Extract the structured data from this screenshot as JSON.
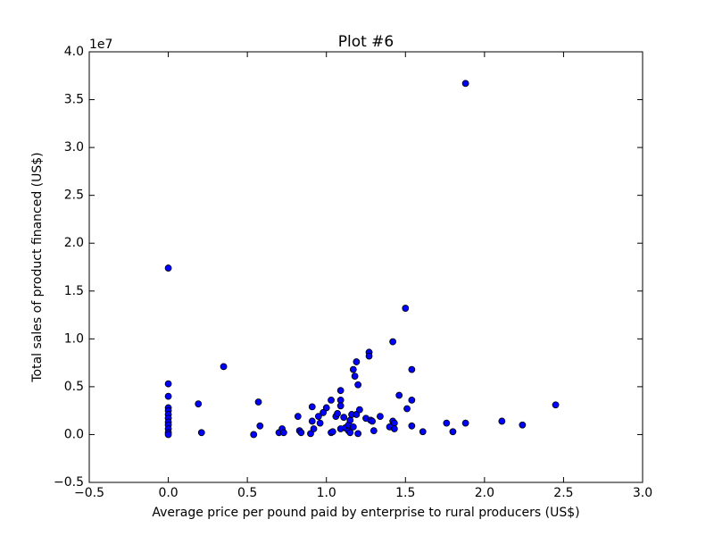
{
  "chart_data": {
    "type": "scatter",
    "title": "Plot #6",
    "x_label": "Average price per pound paid by enterprise to rural producers (US$)",
    "y_label": "Total sales of product financed (US$)",
    "y_offset_label": "1e7",
    "xlim": [
      -0.5,
      3.0
    ],
    "ylim": [
      -0.5,
      4.0
    ],
    "xticks": [
      {
        "value": -0.5,
        "label": "−0.5"
      },
      {
        "value": 0,
        "label": "0.0"
      },
      0.5,
      {
        "value": 1,
        "label": "1.0"
      },
      1.5,
      {
        "value": 2,
        "label": "2.0"
      },
      2.5,
      {
        "value": 3,
        "label": "3.0"
      }
    ],
    "yticks": [
      {
        "value": -0.5,
        "label": "−0.5"
      },
      {
        "value": 0,
        "label": "0.0"
      },
      0.5,
      {
        "value": 1,
        "label": "1.0"
      },
      1.5,
      {
        "value": 2,
        "label": "2.0"
      },
      2.5,
      {
        "value": 3,
        "label": "3.0"
      },
      3.5,
      {
        "value": 4,
        "label": "4.0"
      }
    ],
    "color": "#0000ff",
    "x": [
      0,
      0,
      0,
      0,
      0,
      0,
      0,
      0,
      0,
      0,
      0,
      0,
      0.19,
      0.21,
      0.35,
      0.57,
      0.58,
      0.54,
      0.7,
      0.72,
      0.73,
      0.82,
      0.83,
      0.84,
      0.9,
      0.91,
      0.91,
      0.92,
      0.95,
      0.96,
      0.98,
      1.0,
      1.03,
      1.03,
      1.04,
      1.06,
      1.07,
      1.09,
      1.09,
      1.09,
      1.09,
      1.11,
      1.12,
      1.14,
      1.14,
      1.15,
      1.15,
      1.16,
      1.17,
      1.17,
      1.18,
      1.19,
      1.19,
      1.2,
      1.2,
      1.21,
      1.25,
      1.27,
      1.27,
      1.28,
      1.29,
      1.3,
      1.34,
      1.4,
      1.42,
      1.42,
      1.43,
      1.43,
      1.46,
      1.5,
      1.51,
      1.54,
      1.54,
      1.54,
      1.61,
      1.76,
      1.8,
      1.88,
      1.88,
      2.11,
      2.24,
      2.45
    ],
    "values": [
      1.74,
      0.53,
      0.4,
      0.28,
      0.25,
      0.21,
      0.17,
      0.13,
      0.1,
      0.06,
      0.02,
      0.0,
      0.32,
      0.02,
      0.71,
      0.34,
      0.09,
      0.0,
      0.02,
      0.06,
      0.02,
      0.19,
      0.04,
      0.02,
      0.01,
      0.29,
      0.14,
      0.06,
      0.19,
      0.12,
      0.23,
      0.28,
      0.36,
      0.02,
      0.03,
      0.19,
      0.22,
      0.36,
      0.3,
      0.06,
      0.46,
      0.18,
      0.07,
      0.04,
      0.1,
      0.15,
      0.02,
      0.21,
      0.68,
      0.08,
      0.61,
      0.21,
      0.76,
      0.52,
      0.01,
      0.26,
      0.17,
      0.86,
      0.82,
      0.15,
      0.14,
      0.04,
      0.19,
      0.08,
      0.97,
      0.14,
      0.12,
      0.06,
      0.41,
      1.32,
      0.27,
      0.68,
      0.36,
      0.09,
      0.03,
      0.12,
      0.03,
      3.67,
      0.12,
      0.14,
      0.1,
      0.31
    ]
  }
}
